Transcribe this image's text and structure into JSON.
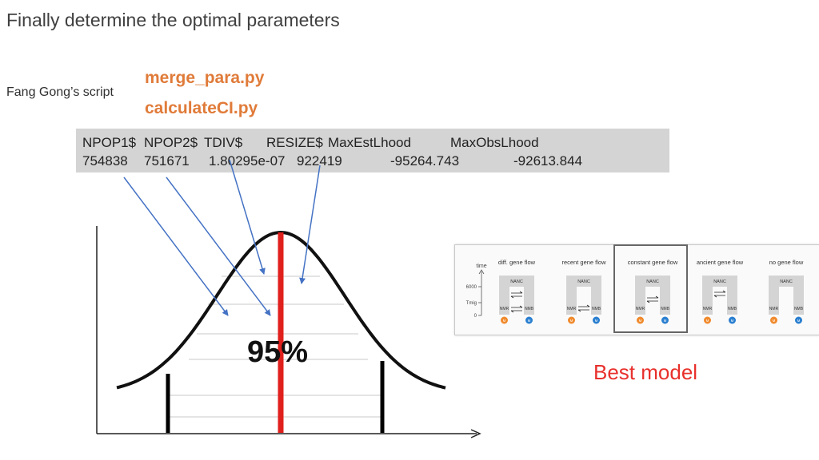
{
  "slide": {
    "title": "Finally determine the optimal parameters",
    "author_note": "Fang Gong’s script",
    "scripts": [
      "merge_para.py",
      "calculateCI.py"
    ],
    "best_model_label": "Best model"
  },
  "param_table": {
    "headers": [
      "NPOP1$",
      "NPOP2$",
      "TDIV$",
      "RESIZE$",
      "MaxEstLhood",
      "MaxObsLhood"
    ],
    "values": [
      "754838",
      "751671",
      "1.80295e-07",
      "922419",
      "-95264.743",
      "-92613.844"
    ]
  },
  "distribution": {
    "confidence_label": "95%",
    "curve_color": "#111111",
    "center_line_color": "#e0201c",
    "arrow_color": "#4472c4"
  },
  "model_panel": {
    "time_axis": {
      "title": "time",
      "ticks": [
        "6000",
        "Tmig",
        "0"
      ]
    },
    "models": [
      {
        "title": "diff. gene flow",
        "ancestor": "NANC",
        "left_pop": "NMR",
        "right_pop": "NMB",
        "flow": "two-way",
        "highlighted": false
      },
      {
        "title": "recent gene flow",
        "ancestor": "NANC",
        "left_pop": "NMR",
        "right_pop": "NMB",
        "flow": "recent",
        "highlighted": false
      },
      {
        "title": "constant gene flow",
        "ancestor": "NANC",
        "left_pop": "NMR",
        "right_pop": "NMB",
        "flow": "constant",
        "highlighted": true
      },
      {
        "title": "ancient gene flow",
        "ancestor": "NANC",
        "left_pop": "NMR",
        "right_pop": "NMB",
        "flow": "ancient",
        "highlighted": false
      },
      {
        "title": "no gene flow",
        "ancestor": "NANC",
        "left_pop": "NMR",
        "right_pop": "NMB",
        "flow": "none",
        "highlighted": false
      }
    ],
    "left_marker": "M",
    "right_marker": "M",
    "left_marker_color": "#f08a2c",
    "right_marker_color": "#2a7fd0"
  }
}
